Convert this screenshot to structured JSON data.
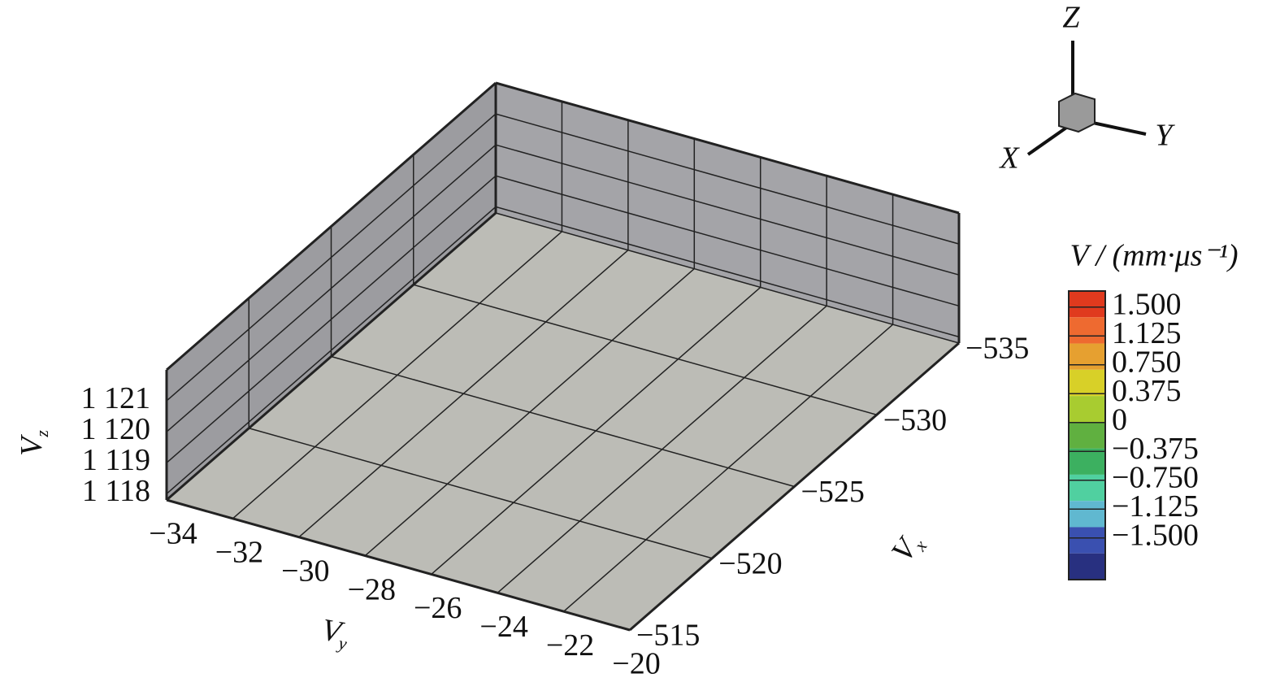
{
  "chart_data": {
    "type": "3d_scatter",
    "xlabel": {
      "main": "V",
      "sub": "x"
    },
    "ylabel": {
      "main": "V",
      "sub": "y"
    },
    "zlabel": {
      "main": "V",
      "sub": "z"
    },
    "xlim": [
      -515,
      -535
    ],
    "ylim": [
      -34,
      -20
    ],
    "zlim": [
      1117.8,
      1122
    ],
    "xticks": [
      {
        "value": -535,
        "label": "−535"
      },
      {
        "value": -530,
        "label": "−530"
      },
      {
        "value": -525,
        "label": "−525"
      },
      {
        "value": -520,
        "label": "−520"
      },
      {
        "value": -515,
        "label": "−515"
      }
    ],
    "yticks": [
      {
        "value": -34,
        "label": "−34"
      },
      {
        "value": -32,
        "label": "−32"
      },
      {
        "value": -30,
        "label": "−30"
      },
      {
        "value": -28,
        "label": "−28"
      },
      {
        "value": -26,
        "label": "−26"
      },
      {
        "value": -24,
        "label": "−24"
      },
      {
        "value": -22,
        "label": "−22"
      },
      {
        "value": -20,
        "label": "−20"
      }
    ],
    "zticks": [
      {
        "value": 1121,
        "label": "1 121"
      },
      {
        "value": 1120,
        "label": "1 120"
      },
      {
        "value": 1119,
        "label": "1 119"
      },
      {
        "value": 1118,
        "label": "1 118"
      }
    ],
    "grid": true,
    "colorbar": {
      "title": "V / (mm·μs⁻¹)",
      "levels": [
        {
          "value": 1.5,
          "label": "1.500"
        },
        {
          "value": 1.125,
          "label": "1.125"
        },
        {
          "value": 0.75,
          "label": "0.750"
        },
        {
          "value": 0.375,
          "label": "0.375"
        },
        0,
        {
          "value": -0.375,
          "label": "−0.375"
        },
        {
          "value": -0.75,
          "label": "−0.750"
        },
        {
          "value": -1.125,
          "label": "−1.125"
        },
        {
          "value": -1.5,
          "label": "−1.500"
        }
      ],
      "colors": [
        "#e03a1e",
        "#ee6a30",
        "#e6a030",
        "#d8d028",
        "#a8cc30",
        "#60b040",
        "#3cb060",
        "#50d0a0",
        "#60b8d0",
        "#3a50b0",
        "#283080"
      ]
    },
    "triad": {
      "z": "Z",
      "x": "X",
      "y": "Y"
    }
  }
}
